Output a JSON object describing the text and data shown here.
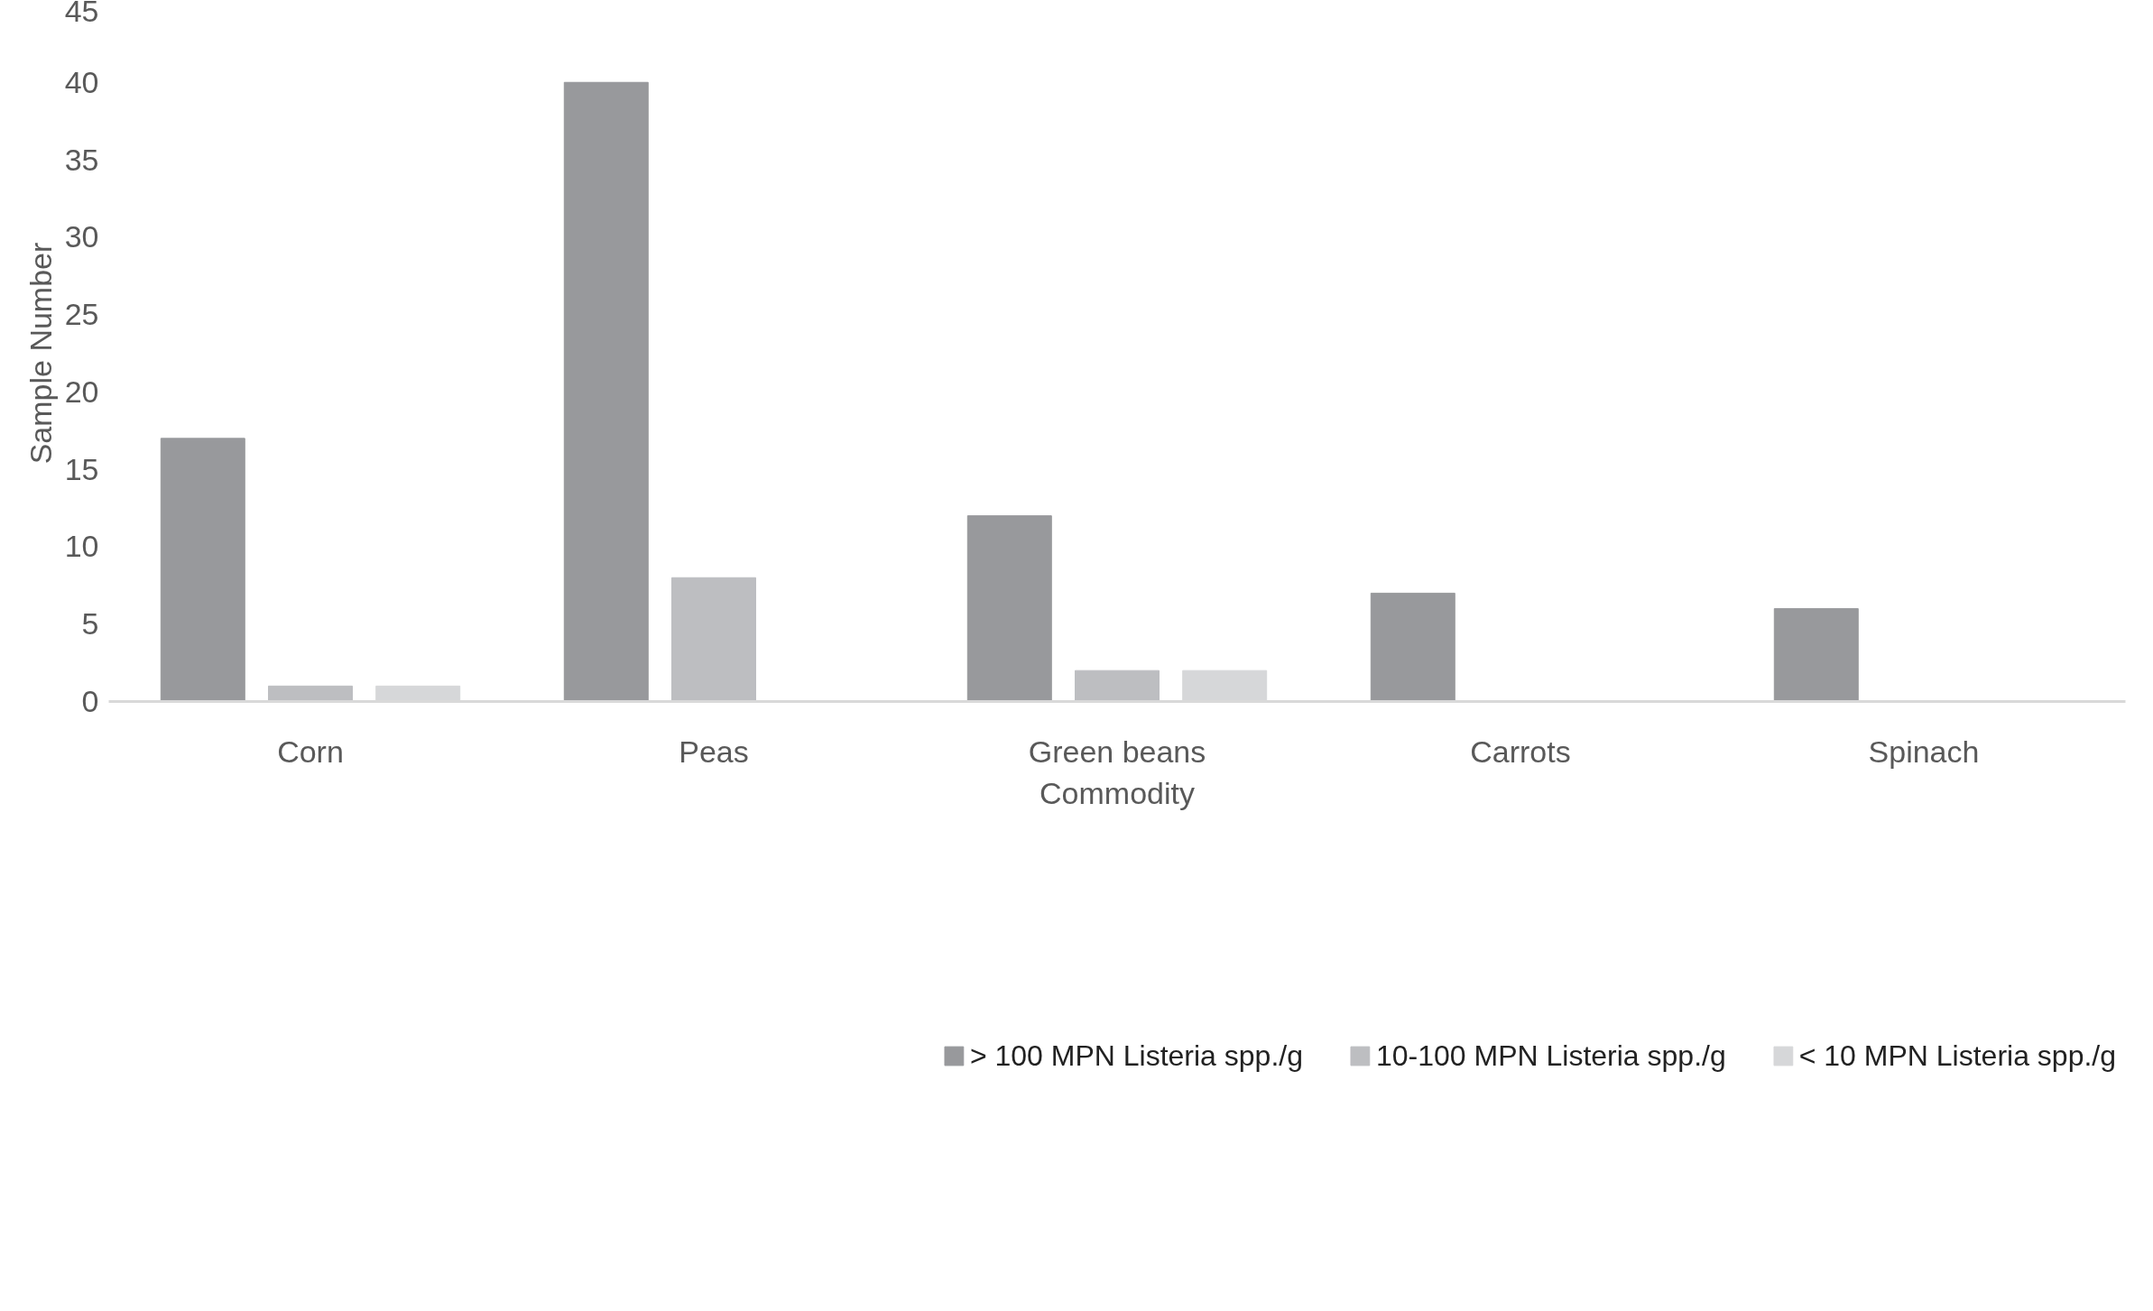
{
  "chart_data": {
    "type": "bar",
    "xlabel": "Commodity",
    "ylabel": "Sample Number",
    "categories": [
      "Corn",
      "Peas",
      "Green beans",
      "Carrots",
      "Spinach"
    ],
    "series": [
      {
        "name": "> 100 MPN Listeria spp./g",
        "color": "#98999c",
        "values": [
          17,
          40,
          12,
          7,
          6
        ]
      },
      {
        "name": "10-100 MPN Listeria spp./g",
        "color": "#bdbec1",
        "values": [
          1,
          8,
          2,
          null,
          null
        ]
      },
      {
        "name": "< 10 MPN Listeria spp./g",
        "color": "#d6d7d9",
        "values": [
          1,
          null,
          2,
          null,
          null
        ]
      }
    ],
    "ylim": [
      0,
      45
    ],
    "yticks": [
      0,
      5,
      10,
      15,
      20,
      25,
      30,
      35,
      40,
      45
    ],
    "grid": false,
    "legend": "bottom"
  }
}
